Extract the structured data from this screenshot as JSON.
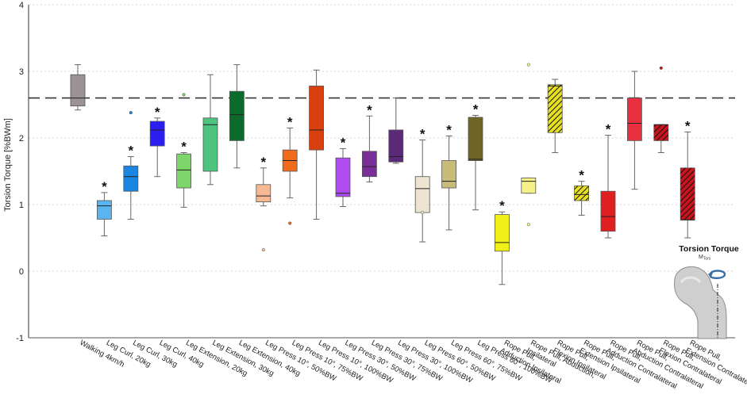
{
  "chart_data": {
    "type": "box",
    "title": "",
    "xlabel": "",
    "ylabel": "Torsion Torque [%BWm]",
    "ylim": [
      -1,
      4
    ],
    "yticks": [
      -1,
      0,
      1,
      2,
      3,
      4
    ],
    "grid": true,
    "reference_line": 2.6,
    "annotation": {
      "title": "Torsion Torque",
      "symbol": "M",
      "subscript": "Tors"
    },
    "series": [
      {
        "label": "Walking 4km/h",
        "color": "#9a9296",
        "hatch": false,
        "sig": false,
        "min": 2.42,
        "q1": 2.48,
        "median": 2.6,
        "q3": 2.95,
        "max": 3.1,
        "outliers": []
      },
      {
        "label": "Leg Curl, 20kg",
        "color": "#5ab4f0",
        "hatch": false,
        "sig": true,
        "min": 0.53,
        "q1": 0.78,
        "median": 0.98,
        "q3": 1.06,
        "max": 1.18,
        "outliers": []
      },
      {
        "label": "Leg Curl, 30kg",
        "color": "#1a86e0",
        "hatch": false,
        "sig": true,
        "min": 0.78,
        "q1": 1.2,
        "median": 1.42,
        "q3": 1.58,
        "max": 1.72,
        "outliers": [
          2.38
        ]
      },
      {
        "label": "Leg Curl, 40kg",
        "color": "#2a1ef0",
        "hatch": false,
        "sig": true,
        "min": 1.42,
        "q1": 1.88,
        "median": 2.12,
        "q3": 2.25,
        "max": 2.3,
        "outliers": []
      },
      {
        "label": "Leg Extension, 20kg",
        "color": "#7ed66a",
        "hatch": false,
        "sig": true,
        "min": 0.96,
        "q1": 1.25,
        "median": 1.52,
        "q3": 1.76,
        "max": 1.78,
        "outliers": [
          2.65
        ]
      },
      {
        "label": "Leg Extension, 30kg",
        "color": "#4cc47e",
        "hatch": false,
        "sig": false,
        "min": 1.3,
        "q1": 1.5,
        "median": 2.2,
        "q3": 2.3,
        "max": 2.95,
        "outliers": []
      },
      {
        "label": "Leg Extension, 40kg",
        "color": "#0c6b2c",
        "hatch": false,
        "sig": false,
        "min": 1.55,
        "q1": 1.96,
        "median": 2.35,
        "q3": 2.7,
        "max": 3.1,
        "outliers": []
      },
      {
        "label": "Leg Press 10°, 50%BW",
        "color": "#f7b894",
        "hatch": false,
        "sig": true,
        "min": 0.98,
        "q1": 1.04,
        "median": 1.13,
        "q3": 1.3,
        "max": 1.55,
        "outliers": [
          0.32
        ]
      },
      {
        "label": "Leg Press 10°, 75%BW",
        "color": "#ef6a1a",
        "hatch": false,
        "sig": true,
        "min": 1.1,
        "q1": 1.5,
        "median": 1.66,
        "q3": 1.82,
        "max": 2.15,
        "outliers": [
          0.72
        ]
      },
      {
        "label": "Leg Press 10°, 100%BW",
        "color": "#d84010",
        "hatch": false,
        "sig": false,
        "min": 0.78,
        "q1": 1.82,
        "median": 2.12,
        "q3": 2.78,
        "max": 3.02,
        "outliers": []
      },
      {
        "label": "Leg Press 30°, 50%BW",
        "color": "#ae4cf0",
        "hatch": false,
        "sig": true,
        "min": 0.97,
        "q1": 1.12,
        "median": 1.17,
        "q3": 1.7,
        "max": 1.84,
        "outliers": []
      },
      {
        "label": "Leg Press 30°, 75%BW",
        "color": "#7a2e9a",
        "hatch": false,
        "sig": true,
        "min": 1.34,
        "q1": 1.42,
        "median": 1.57,
        "q3": 1.8,
        "max": 2.33,
        "outliers": []
      },
      {
        "label": "Leg Press 30°, 100%BW",
        "color": "#5a2a78",
        "hatch": false,
        "sig": false,
        "min": 1.62,
        "q1": 1.64,
        "median": 1.72,
        "q3": 2.12,
        "max": 2.6,
        "outliers": []
      },
      {
        "label": "Leg Press 60°, 50%BW",
        "color": "#ece4d0",
        "hatch": false,
        "sig": true,
        "min": 0.44,
        "q1": 0.88,
        "median": 1.24,
        "q3": 1.42,
        "max": 1.97,
        "outliers": [
          0.88
        ]
      },
      {
        "label": "Leg Press 60°, 75%BW",
        "color": "#c8bc78",
        "hatch": false,
        "sig": true,
        "min": 0.62,
        "q1": 1.25,
        "median": 1.35,
        "q3": 1.66,
        "max": 2.03,
        "outliers": []
      },
      {
        "label": "Leg Press 60°, 100%BW",
        "color": "#6e6424",
        "hatch": false,
        "sig": true,
        "min": 0.92,
        "q1": 1.66,
        "median": 1.68,
        "q3": 2.31,
        "max": 2.34,
        "outliers": []
      },
      {
        "label": "Rope Pull, Adduction Ipsilateral",
        "color": "#f0f018",
        "hatch": false,
        "sig": true,
        "min": -0.2,
        "q1": 0.3,
        "median": 0.43,
        "q3": 0.85,
        "max": 0.89,
        "outliers": []
      },
      {
        "label": "Rope Pull, Abduction, Ipsilateral",
        "color": "#f5f088",
        "hatch": false,
        "sig": false,
        "min": 1.17,
        "q1": 1.17,
        "median": 1.35,
        "q3": 1.4,
        "max": 1.4,
        "outliers": [
          0.7,
          3.1
        ]
      },
      {
        "label": "Rope Pull, Flexion Ipsilateral",
        "color": "#e6e020",
        "hatch": true,
        "sig": false,
        "min": 1.78,
        "q1": 2.08,
        "median": 2.78,
        "q3": 2.8,
        "max": 2.88,
        "outliers": []
      },
      {
        "label": "Rope Pull, Extension Ipsilateral",
        "color": "#e6e020",
        "hatch": true,
        "sig": true,
        "min": 0.84,
        "q1": 1.06,
        "median": 1.15,
        "q3": 1.28,
        "max": 1.35,
        "outliers": []
      },
      {
        "label": "Rope Pull, Adduction Contralateral",
        "color": "#e02020",
        "hatch": false,
        "sig": true,
        "min": 0.5,
        "q1": 0.6,
        "median": 0.82,
        "q3": 1.2,
        "max": 2.04,
        "outliers": []
      },
      {
        "label": "Rope Pull, Abduction Contralateral",
        "color": "#e83040",
        "hatch": false,
        "sig": false,
        "min": 1.23,
        "q1": 1.96,
        "median": 2.22,
        "q3": 2.6,
        "max": 3.0,
        "outliers": []
      },
      {
        "label": "Rope Pull, Flexion Contralateral",
        "color": "#c8141e",
        "hatch": true,
        "sig": false,
        "min": 1.78,
        "q1": 1.96,
        "median": 2.2,
        "q3": 2.2,
        "max": 2.2,
        "outliers": [
          3.05
        ]
      },
      {
        "label": "Rope Pull, Extension Contralateral",
        "color": "#c8141e",
        "hatch": true,
        "sig": true,
        "min": 0.5,
        "q1": 0.77,
        "median": 0.77,
        "q3": 1.55,
        "max": 2.09,
        "outliers": []
      }
    ]
  }
}
